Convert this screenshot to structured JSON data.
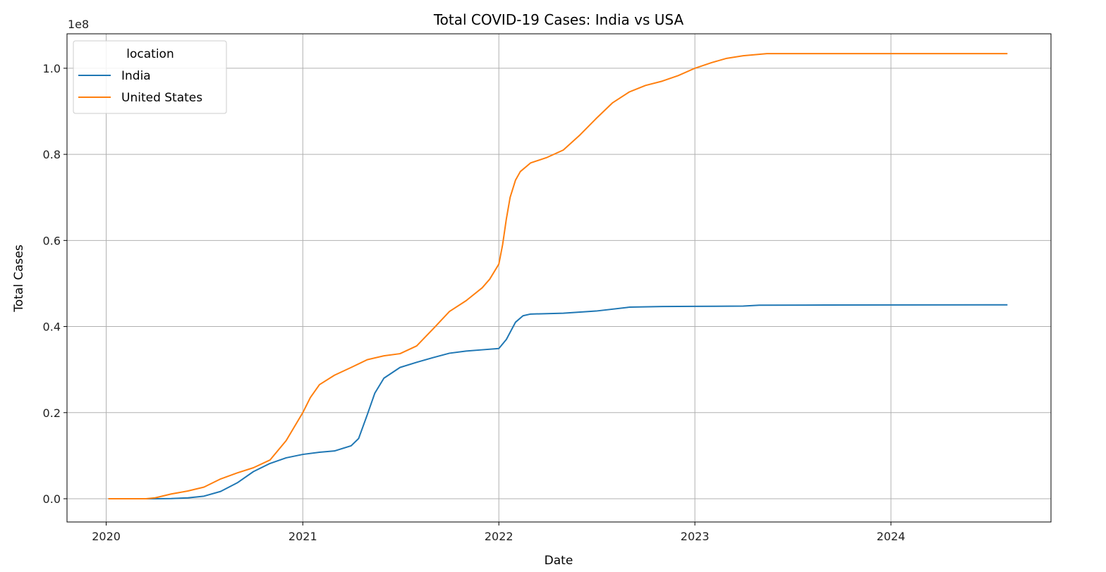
{
  "chart_data": {
    "type": "line",
    "title": "Total COVID-19 Cases: India vs USA",
    "xlabel": "Date",
    "ylabel": "Total Cases",
    "y_offset_label": "1e8",
    "y_scale": 100000000,
    "xlim": [
      "2019-10-20",
      "2024-10-25"
    ],
    "ylim": [
      -5400000,
      108000000
    ],
    "x_ticks": [
      "2020-01-01",
      "2021-01-01",
      "2022-01-01",
      "2023-01-01",
      "2024-01-01"
    ],
    "x_tick_labels": [
      "2020",
      "2021",
      "2022",
      "2023",
      "2024"
    ],
    "y_ticks": [
      0,
      20000000,
      40000000,
      60000000,
      80000000,
      100000000
    ],
    "y_tick_labels": [
      "0.0",
      "0.2",
      "0.4",
      "0.6",
      "0.8",
      "1.0"
    ],
    "grid": true,
    "legend": {
      "title": "location",
      "placement": "top-left"
    },
    "series": [
      {
        "name": "India",
        "color": "#1f77b4",
        "points": [
          [
            "2020-01-05",
            0
          ],
          [
            "2020-03-01",
            10000
          ],
          [
            "2020-04-01",
            2000
          ],
          [
            "2020-05-01",
            40000
          ],
          [
            "2020-06-01",
            200000
          ],
          [
            "2020-07-01",
            600000
          ],
          [
            "2020-08-01",
            1700000
          ],
          [
            "2020-09-01",
            3700000
          ],
          [
            "2020-10-01",
            6300000
          ],
          [
            "2020-11-01",
            8200000
          ],
          [
            "2020-12-01",
            9500000
          ],
          [
            "2021-01-01",
            10300000
          ],
          [
            "2021-02-01",
            10800000
          ],
          [
            "2021-03-01",
            11100000
          ],
          [
            "2021-04-01",
            12300000
          ],
          [
            "2021-04-15",
            14000000
          ],
          [
            "2021-05-01",
            19500000
          ],
          [
            "2021-05-15",
            24500000
          ],
          [
            "2021-06-01",
            28000000
          ],
          [
            "2021-07-01",
            30500000
          ],
          [
            "2021-08-01",
            31700000
          ],
          [
            "2021-09-01",
            32800000
          ],
          [
            "2021-10-01",
            33800000
          ],
          [
            "2021-11-01",
            34300000
          ],
          [
            "2021-12-01",
            34600000
          ],
          [
            "2022-01-01",
            34900000
          ],
          [
            "2022-01-15",
            37000000
          ],
          [
            "2022-02-01",
            41000000
          ],
          [
            "2022-02-15",
            42500000
          ],
          [
            "2022-03-01",
            42900000
          ],
          [
            "2022-05-01",
            43100000
          ],
          [
            "2022-07-01",
            43600000
          ],
          [
            "2022-09-01",
            44500000
          ],
          [
            "2022-11-01",
            44650000
          ],
          [
            "2023-01-01",
            44700000
          ],
          [
            "2023-04-01",
            44750000
          ],
          [
            "2023-05-01",
            44950000
          ],
          [
            "2023-09-01",
            45000000
          ],
          [
            "2024-08-05",
            45040000
          ]
        ]
      },
      {
        "name": "United States",
        "color": "#ff7f0e",
        "points": [
          [
            "2020-01-05",
            0
          ],
          [
            "2020-03-15",
            5000
          ],
          [
            "2020-04-01",
            200000
          ],
          [
            "2020-05-01",
            1100000
          ],
          [
            "2020-06-01",
            1800000
          ],
          [
            "2020-07-01",
            2700000
          ],
          [
            "2020-08-01",
            4600000
          ],
          [
            "2020-09-01",
            6000000
          ],
          [
            "2020-10-01",
            7200000
          ],
          [
            "2020-11-01",
            9000000
          ],
          [
            "2020-12-01",
            13500000
          ],
          [
            "2021-01-01",
            20000000
          ],
          [
            "2021-01-15",
            23500000
          ],
          [
            "2021-02-01",
            26500000
          ],
          [
            "2021-03-01",
            28700000
          ],
          [
            "2021-04-01",
            30500000
          ],
          [
            "2021-05-01",
            32300000
          ],
          [
            "2021-06-01",
            33200000
          ],
          [
            "2021-07-01",
            33700000
          ],
          [
            "2021-08-01",
            35500000
          ],
          [
            "2021-09-01",
            39500000
          ],
          [
            "2021-10-01",
            43500000
          ],
          [
            "2021-11-01",
            46000000
          ],
          [
            "2021-12-01",
            49000000
          ],
          [
            "2021-12-15",
            51000000
          ],
          [
            "2022-01-01",
            54500000
          ],
          [
            "2022-01-08",
            59000000
          ],
          [
            "2022-01-15",
            65000000
          ],
          [
            "2022-01-22",
            70000000
          ],
          [
            "2022-02-01",
            74000000
          ],
          [
            "2022-02-10",
            76000000
          ],
          [
            "2022-03-01",
            78000000
          ],
          [
            "2022-04-01",
            79300000
          ],
          [
            "2022-05-01",
            81000000
          ],
          [
            "2022-06-01",
            84500000
          ],
          [
            "2022-07-01",
            88300000
          ],
          [
            "2022-08-01",
            92000000
          ],
          [
            "2022-09-01",
            94500000
          ],
          [
            "2022-10-01",
            96000000
          ],
          [
            "2022-11-01",
            97000000
          ],
          [
            "2022-12-01",
            98300000
          ],
          [
            "2023-01-01",
            100000000
          ],
          [
            "2023-02-01",
            101300000
          ],
          [
            "2023-03-01",
            102300000
          ],
          [
            "2023-04-01",
            102900000
          ],
          [
            "2023-05-15",
            103400000
          ],
          [
            "2024-08-05",
            103400000
          ]
        ]
      }
    ]
  }
}
